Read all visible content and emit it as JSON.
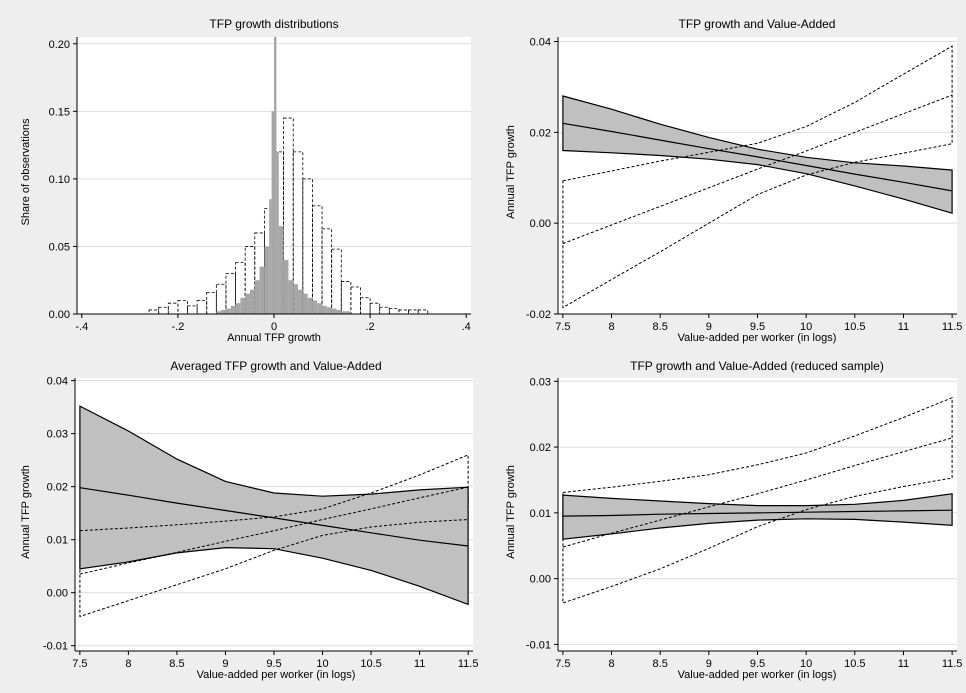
{
  "colors": {
    "outer_bg": "#eeeeee",
    "plot_bg": "#ffffff",
    "grid": "#dddddd",
    "band_fill": "#c0c0c0",
    "hist_fill": "#a6a6a6",
    "line": "#000000"
  },
  "chart_data": [
    {
      "id": "hist",
      "type": "bar",
      "title": "TFP growth distributions",
      "xlabel": "Annual TFP growth",
      "ylabel": "Share of observations",
      "xlim": [
        -0.41,
        0.41
      ],
      "ylim": [
        0,
        0.205
      ],
      "xticks": [
        -0.4,
        -0.2,
        0,
        0.2,
        0.4
      ],
      "xtick_labels": [
        "-.4",
        "-.2",
        "0",
        ".2",
        ".4"
      ],
      "yticks": [
        0,
        0.05,
        0.1,
        0.15,
        0.2
      ],
      "ytick_labels": [
        "0.00",
        "0.05",
        "0.10",
        "0.15",
        "0.20"
      ],
      "grid": true,
      "series": [
        {
          "style": "dashed-outline",
          "bin_edges": [
            -0.26,
            -0.24,
            -0.22,
            -0.2,
            -0.18,
            -0.16,
            -0.14,
            -0.12,
            -0.1,
            -0.08,
            -0.06,
            -0.04,
            -0.02,
            0,
            0.02,
            0.04,
            0.06,
            0.08,
            0.1,
            0.12,
            0.14,
            0.16,
            0.18,
            0.2,
            0.22,
            0.24,
            0.26,
            0.28,
            0.3,
            0.32
          ],
          "values": [
            0.003,
            0.005,
            0.008,
            0.01,
            0.006,
            0.01,
            0.016,
            0.022,
            0.03,
            0.038,
            0.05,
            0.06,
            0.078,
            0.12,
            0.145,
            0.12,
            0.1,
            0.08,
            0.063,
            0.048,
            0.024,
            0.02,
            0.012,
            0.008,
            0.005,
            0.004,
            0.003,
            0.003,
            0.003
          ]
        },
        {
          "style": "filled",
          "bin_edges": [
            -0.12,
            -0.11,
            -0.1,
            -0.09,
            -0.08,
            -0.07,
            -0.06,
            -0.05,
            -0.04,
            -0.03,
            -0.02,
            -0.01,
            -0.005,
            0,
            0.005,
            0.01,
            0.02,
            0.03,
            0.04,
            0.05,
            0.06,
            0.07,
            0.08,
            0.09,
            0.1,
            0.11,
            0.12,
            0.13,
            0.14,
            0.15,
            0.16
          ],
          "values": [
            0.002,
            0.003,
            0.004,
            0.006,
            0.008,
            0.012,
            0.015,
            0.018,
            0.025,
            0.035,
            0.05,
            0.085,
            0.15,
            0.205,
            0.12,
            0.065,
            0.04,
            0.025,
            0.022,
            0.018,
            0.015,
            0.012,
            0.01,
            0.008,
            0.006,
            0.005,
            0.004,
            0.003,
            0.002,
            0.002
          ]
        }
      ]
    },
    {
      "id": "tr",
      "type": "area",
      "title": "TFP growth and Value-Added",
      "xlabel": "Value-added per worker (in logs)",
      "ylabel": "Annual TFP growth",
      "xlim": [
        7.45,
        11.55
      ],
      "ylim": [
        -0.02,
        0.041
      ],
      "xticks": [
        7.5,
        8,
        8.5,
        9,
        9.5,
        10,
        10.5,
        11,
        11.5
      ],
      "xtick_labels": [
        "7.5",
        "8",
        "8.5",
        "9",
        "9.5",
        "10",
        "10.5",
        "11",
        "11.5"
      ],
      "yticks": [
        -0.02,
        0,
        0.02,
        0.04
      ],
      "ytick_labels": [
        "-0.02",
        "0.00",
        "0.02",
        "0.04"
      ],
      "grid": true,
      "x": [
        7.5,
        8,
        8.5,
        9,
        9.5,
        10,
        10.5,
        11,
        11.5
      ],
      "series": [
        {
          "style": "shaded",
          "center": [
            0.022,
            0.0202,
            0.0183,
            0.0164,
            0.0146,
            0.0127,
            0.0108,
            0.009,
            0.0071
          ],
          "lower": [
            0.016,
            0.0155,
            0.0149,
            0.0141,
            0.0129,
            0.0109,
            0.0082,
            0.0053,
            0.0022
          ],
          "upper": [
            0.028,
            0.0251,
            0.0218,
            0.0189,
            0.0163,
            0.0145,
            0.0133,
            0.0126,
            0.0117
          ]
        },
        {
          "style": "dashed",
          "center": [
            -0.0045,
            -0.0004,
            0.0037,
            0.0078,
            0.0119,
            0.0159,
            0.02,
            0.0241,
            0.0282
          ],
          "lower": [
            -0.0186,
            -0.0124,
            -0.0063,
            0.0,
            0.0063,
            0.0106,
            0.0134,
            0.0154,
            0.0175
          ],
          "upper": [
            0.0093,
            0.0115,
            0.0137,
            0.0156,
            0.0176,
            0.0213,
            0.0266,
            0.0328,
            0.039
          ]
        }
      ]
    },
    {
      "id": "bl",
      "type": "area",
      "title": "Averaged TFP growth and Value-Added",
      "xlabel": "Value-added per worker (in logs)",
      "ylabel": "Annual TFP growth",
      "xlim": [
        7.45,
        11.55
      ],
      "ylim": [
        -0.011,
        0.0405
      ],
      "xticks": [
        7.5,
        8,
        8.5,
        9,
        9.5,
        10,
        10.5,
        11,
        11.5
      ],
      "xtick_labels": [
        "7.5",
        "8",
        "8.5",
        "9",
        "9.5",
        "10",
        "10.5",
        "11",
        "11.5"
      ],
      "yticks": [
        -0.01,
        0,
        0.01,
        0.02,
        0.03,
        0.04
      ],
      "ytick_labels": [
        "-0.01",
        "0.00",
        "0.01",
        "0.02",
        "0.03",
        "0.04"
      ],
      "grid": true,
      "x": [
        7.5,
        8,
        8.5,
        9,
        9.5,
        10,
        10.5,
        11,
        11.5
      ],
      "series": [
        {
          "style": "shaded",
          "center": [
            0.0198,
            0.0184,
            0.0169,
            0.0155,
            0.0141,
            0.0127,
            0.0113,
            0.0099,
            0.0088
          ],
          "lower": [
            0.0045,
            0.0058,
            0.0075,
            0.0085,
            0.0083,
            0.0065,
            0.0042,
            0.0012,
            -0.0022
          ],
          "upper": [
            0.0352,
            0.0305,
            0.0252,
            0.021,
            0.0188,
            0.0182,
            0.0186,
            0.0194,
            0.0199
          ]
        },
        {
          "style": "dashed",
          "center": [
            0.0035,
            0.0056,
            0.0076,
            0.0097,
            0.0117,
            0.0138,
            0.0158,
            0.0179,
            0.0199
          ],
          "lower": [
            -0.0045,
            -0.0015,
            0.0015,
            0.0045,
            0.008,
            0.0108,
            0.0124,
            0.0133,
            0.0138
          ],
          "upper": [
            0.0117,
            0.0122,
            0.0128,
            0.0135,
            0.0143,
            0.0158,
            0.0188,
            0.0222,
            0.026
          ]
        }
      ]
    },
    {
      "id": "br",
      "type": "area",
      "title": "TFP growth and Value-Added (reduced sample)",
      "xlabel": "Value-added per worker (in logs)",
      "ylabel": "Annual TFP growth",
      "xlim": [
        7.45,
        11.55
      ],
      "ylim": [
        -0.011,
        0.0305
      ],
      "xticks": [
        7.5,
        8,
        8.5,
        9,
        9.5,
        10,
        10.5,
        11,
        11.5
      ],
      "xtick_labels": [
        "7.5",
        "8",
        "8.5",
        "9",
        "9.5",
        "10",
        "10.5",
        "11",
        "11.5"
      ],
      "yticks": [
        -0.01,
        0,
        0.01,
        0.02,
        0.03
      ],
      "ytick_labels": [
        "-0.01",
        "0.00",
        "0.01",
        "0.02",
        "0.03"
      ],
      "grid": true,
      "x": [
        7.5,
        8,
        8.5,
        9,
        9.5,
        10,
        10.5,
        11,
        11.5
      ],
      "series": [
        {
          "style": "shaded",
          "center": [
            0.0095,
            0.0096,
            0.0098,
            0.0099,
            0.01,
            0.0101,
            0.0102,
            0.0103,
            0.0104
          ],
          "lower": [
            0.006,
            0.0068,
            0.0077,
            0.0084,
            0.0089,
            0.0091,
            0.009,
            0.0086,
            0.0081
          ],
          "upper": [
            0.0127,
            0.0122,
            0.0118,
            0.0114,
            0.0111,
            0.0111,
            0.0113,
            0.0119,
            0.0129
          ]
        },
        {
          "style": "dashed",
          "center": [
            0.0048,
            0.0069,
            0.0089,
            0.0109,
            0.0129,
            0.015,
            0.0172,
            0.0193,
            0.0214
          ],
          "lower": [
            -0.0037,
            -0.0012,
            0.0015,
            0.0046,
            0.0079,
            0.0105,
            0.0125,
            0.014,
            0.0153
          ],
          "upper": [
            0.0131,
            0.0139,
            0.0148,
            0.0158,
            0.0173,
            0.0191,
            0.0217,
            0.0245,
            0.0275
          ]
        }
      ]
    }
  ]
}
